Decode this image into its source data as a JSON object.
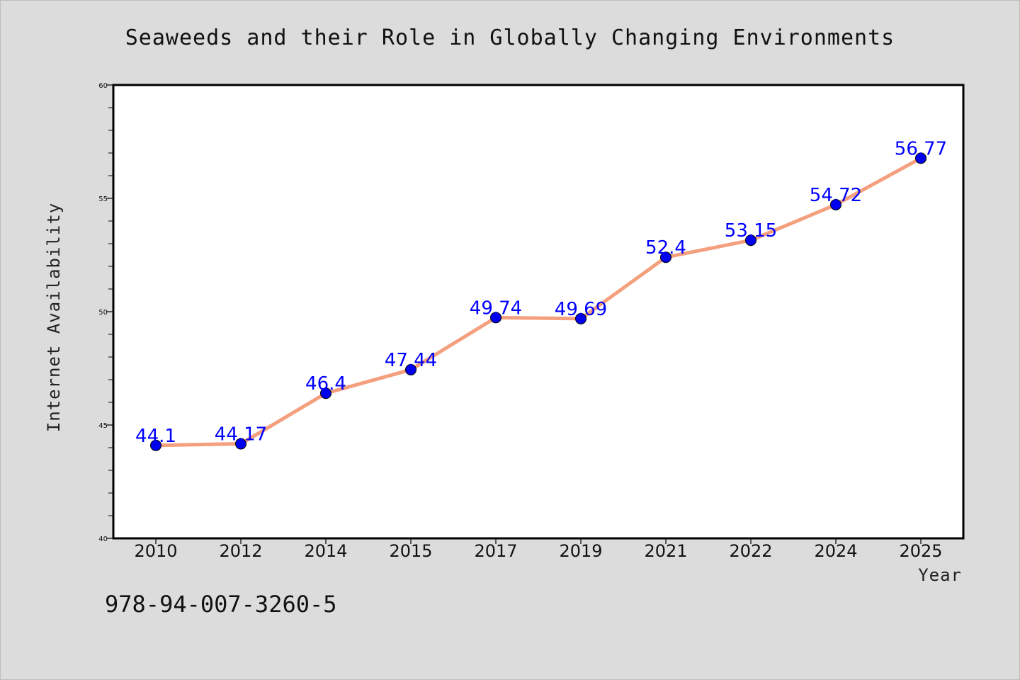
{
  "chart_data": {
    "type": "line",
    "title": "Seaweeds and their Role in Globally Changing Environments",
    "xlabel": "Year",
    "ylabel": "Internet Availability",
    "categories": [
      "2010",
      "2012",
      "2014",
      "2015",
      "2017",
      "2019",
      "2021",
      "2022",
      "2024",
      "2025"
    ],
    "series": [
      {
        "values": [
          44.1,
          44.17,
          46.4,
          47.44,
          49.74,
          49.69,
          52.4,
          53.15,
          54.72,
          56.77
        ],
        "labels": [
          "44.1",
          "44.17",
          "46.4",
          "47.44",
          "49.74",
          "49.69",
          "52.4",
          "53.15",
          "54.72",
          "56.77"
        ],
        "line_color": "#f4a07e",
        "marker_color": "#0000ee"
      }
    ],
    "ylim": [
      40,
      60
    ],
    "yticks": [
      40,
      45,
      50,
      55,
      60
    ],
    "ytick_labels": [
      "40",
      "45",
      "50",
      "55",
      "60"
    ],
    "grid": false,
    "legend": "none"
  },
  "annotation": "978-94-007-3260-5"
}
